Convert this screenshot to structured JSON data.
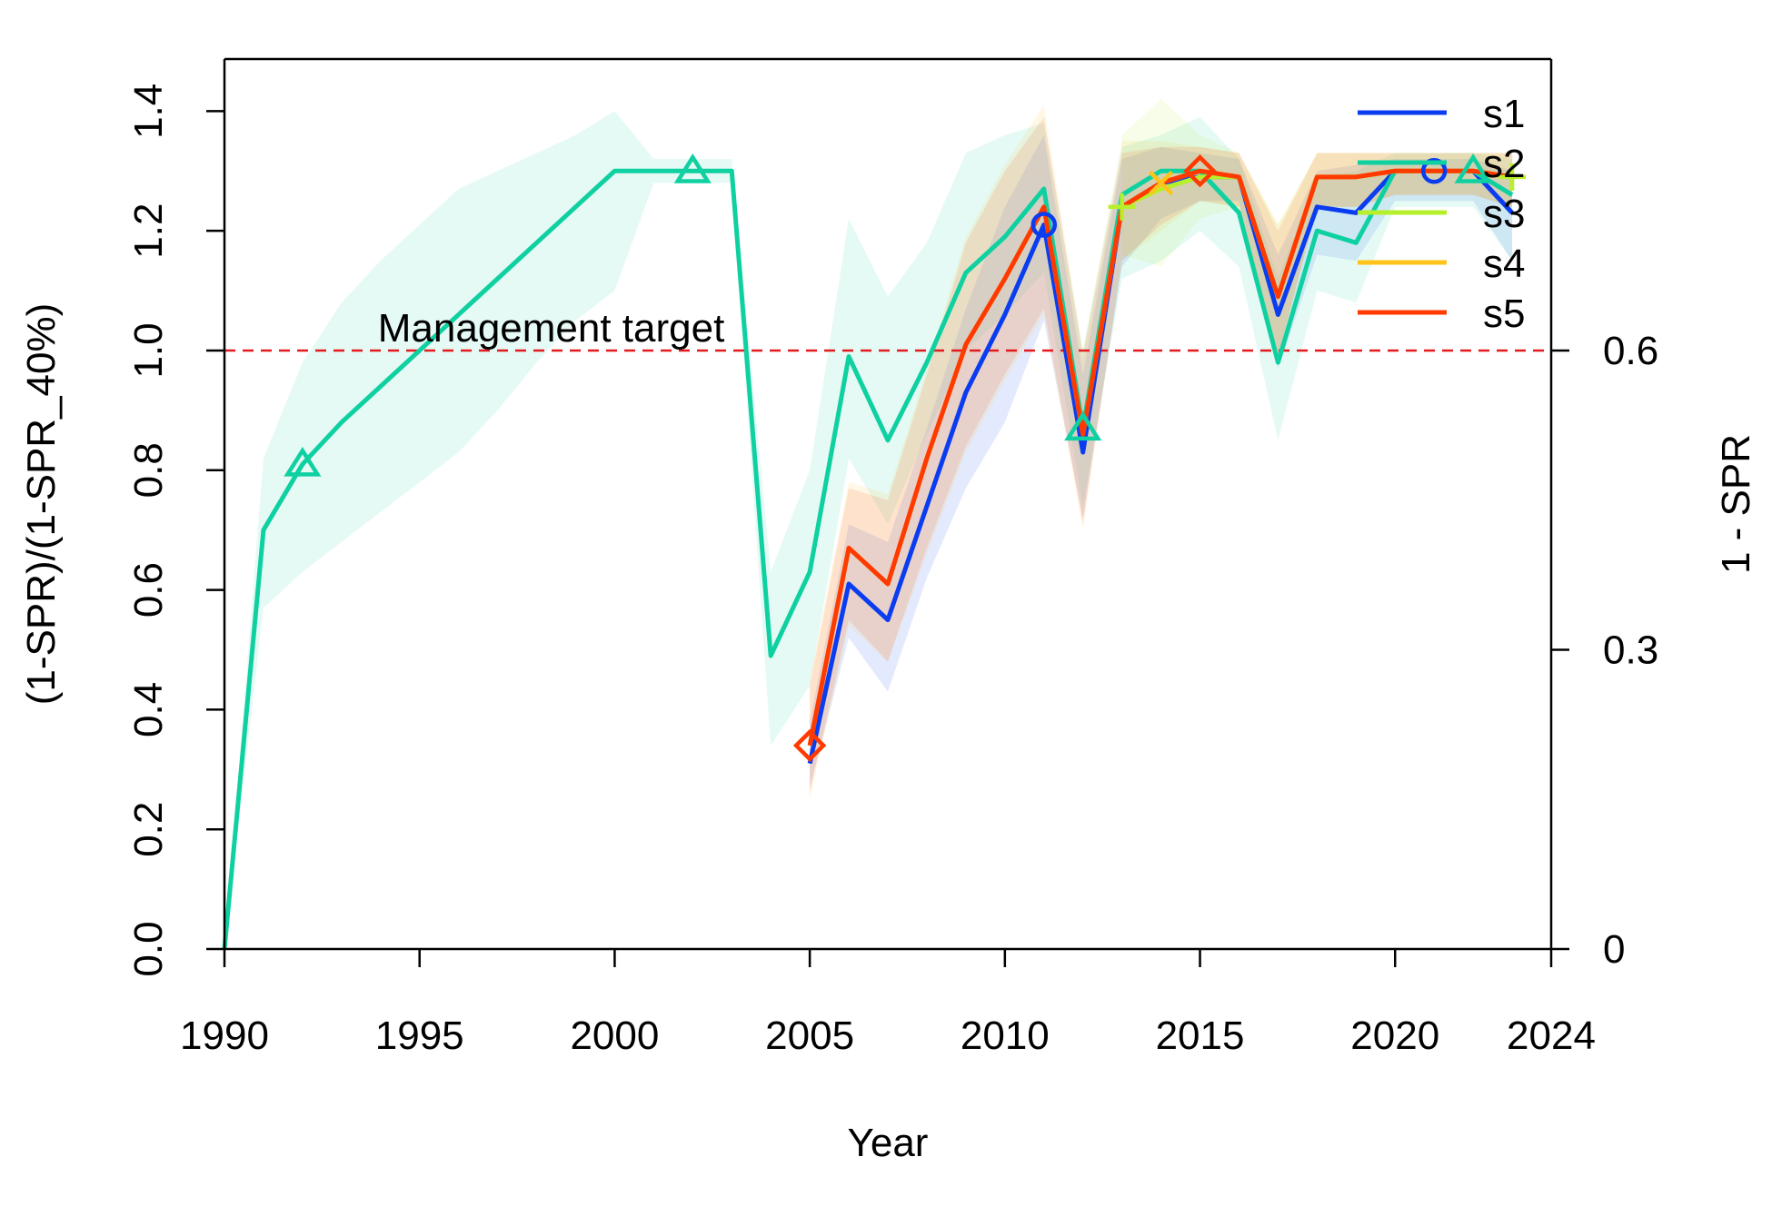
{
  "chart_data": {
    "type": "line",
    "xlabel": "Year",
    "ylabel": "(1-SPR)/(1-SPR_40%)",
    "ylabel_right": "1 - SPR",
    "xlim": [
      1990,
      2024
    ],
    "ylim": [
      0,
      1.4
    ],
    "x_ticks": [
      1990,
      1995,
      2000,
      2005,
      2010,
      2015,
      2020,
      2024
    ],
    "y_ticks": [
      0.0,
      0.2,
      0.4,
      0.6,
      0.8,
      1.0,
      1.2,
      1.4
    ],
    "y_tick_labels": [
      "0.0",
      "0.2",
      "0.4",
      "0.6",
      "0.8",
      "1.0",
      "1.2",
      "1.4"
    ],
    "y2_ticks": [
      {
        "value": 0.0,
        "label": "0"
      },
      {
        "value": 0.5,
        "label": "0.3"
      },
      {
        "value": 1.0,
        "label": "0.6"
      }
    ],
    "reference_line": {
      "y": 1.0,
      "label": "Management target",
      "label_x": 1994,
      "color": "#e31a1c"
    },
    "legend": {
      "position": "top-right"
    },
    "series": [
      {
        "name": "s1",
        "color": "#0a3cf0",
        "marker": "circle",
        "x": [
          2005,
          2006,
          2007,
          2008,
          2009,
          2010,
          2011,
          2012,
          2013,
          2014,
          2015,
          2016,
          2017,
          2018,
          2019,
          2020,
          2021,
          2022,
          2023
        ],
        "values": [
          0.31,
          0.61,
          0.55,
          0.74,
          0.93,
          1.06,
          1.21,
          0.83,
          1.24,
          1.28,
          1.29,
          1.29,
          1.06,
          1.24,
          1.23,
          1.3,
          1.3,
          1.3,
          1.23
        ],
        "lower": [
          0.27,
          0.52,
          0.43,
          0.62,
          0.77,
          0.88,
          1.05,
          0.72,
          1.14,
          1.22,
          1.25,
          1.25,
          0.97,
          1.16,
          1.15,
          1.25,
          1.25,
          1.25,
          1.15
        ],
        "upper": [
          0.38,
          0.71,
          0.68,
          0.87,
          1.07,
          1.24,
          1.36,
          0.96,
          1.32,
          1.34,
          1.33,
          1.32,
          1.16,
          1.3,
          1.31,
          1.32,
          1.32,
          1.32,
          1.3
        ],
        "marker_x": [
          2011,
          2021
        ]
      },
      {
        "name": "s2",
        "color": "#0fd0a0",
        "marker": "triangle",
        "x": [
          1990,
          1991,
          1992,
          1993,
          1994,
          1995,
          1996,
          1997,
          1998,
          1999,
          2000,
          2001,
          2002,
          2003,
          2004,
          2005,
          2006,
          2007,
          2008,
          2009,
          2010,
          2011,
          2012,
          2013,
          2014,
          2015,
          2016,
          2017,
          2018,
          2019,
          2020,
          2021,
          2022,
          2023
        ],
        "values": [
          0.0,
          0.7,
          0.81,
          0.88,
          0.94,
          1.0,
          1.06,
          1.12,
          1.18,
          1.24,
          1.3,
          1.3,
          1.3,
          1.3,
          0.49,
          0.63,
          0.99,
          0.85,
          0.98,
          1.13,
          1.19,
          1.27,
          0.87,
          1.26,
          1.3,
          1.3,
          1.23,
          0.98,
          1.2,
          1.18,
          1.3,
          1.3,
          1.3,
          1.26
        ],
        "lower": [
          0.0,
          0.57,
          0.63,
          0.68,
          0.73,
          0.78,
          0.83,
          0.9,
          0.98,
          1.05,
          1.1,
          1.28,
          1.28,
          1.28,
          0.34,
          0.44,
          0.82,
          0.71,
          0.86,
          1.0,
          1.06,
          1.13,
          0.74,
          1.12,
          1.15,
          1.2,
          1.14,
          0.85,
          1.1,
          1.08,
          1.24,
          1.24,
          1.24,
          1.15
        ],
        "upper": [
          0.0,
          0.82,
          0.98,
          1.08,
          1.15,
          1.21,
          1.27,
          1.3,
          1.33,
          1.36,
          1.4,
          1.32,
          1.32,
          1.32,
          0.63,
          0.8,
          1.22,
          1.09,
          1.18,
          1.33,
          1.36,
          1.38,
          1.0,
          1.34,
          1.36,
          1.39,
          1.32,
          1.12,
          1.29,
          1.3,
          1.33,
          1.33,
          1.33,
          1.32
        ],
        "marker_x": [
          1992,
          2002,
          2012,
          2022
        ]
      },
      {
        "name": "s3",
        "color": "#b5f02a",
        "marker": "plus",
        "x": [
          2013,
          2014,
          2015,
          2016,
          2017,
          2018,
          2019,
          2020,
          2021,
          2022,
          2023
        ],
        "values": [
          1.24,
          1.27,
          1.29,
          1.29,
          1.09,
          1.29,
          1.29,
          1.3,
          1.3,
          1.3,
          1.29
        ],
        "lower": [
          1.16,
          1.14,
          1.22,
          1.24,
          0.99,
          1.24,
          1.24,
          1.26,
          1.26,
          1.26,
          1.24
        ],
        "upper": [
          1.36,
          1.42,
          1.36,
          1.33,
          1.21,
          1.33,
          1.33,
          1.33,
          1.33,
          1.33,
          1.33
        ],
        "marker_x": [
          2013,
          2023
        ]
      },
      {
        "name": "s4",
        "color": "#ffc31a",
        "marker": "x",
        "x": [
          2005,
          2006,
          2007,
          2008,
          2009,
          2010,
          2011,
          2012,
          2013,
          2014,
          2015,
          2016,
          2017,
          2018,
          2019,
          2020,
          2021,
          2022,
          2023
        ],
        "values": [
          0.34,
          0.67,
          0.61,
          0.82,
          1.01,
          1.12,
          1.24,
          0.86,
          1.24,
          1.28,
          1.3,
          1.29,
          1.09,
          1.29,
          1.29,
          1.3,
          1.3,
          1.3,
          1.29
        ],
        "lower": [
          0.25,
          0.54,
          0.48,
          0.66,
          0.83,
          0.95,
          1.06,
          0.7,
          1.15,
          1.2,
          1.25,
          1.24,
          0.99,
          1.24,
          1.24,
          1.26,
          1.26,
          1.26,
          1.24
        ],
        "upper": [
          0.45,
          0.78,
          0.76,
          0.97,
          1.19,
          1.31,
          1.41,
          1.0,
          1.35,
          1.35,
          1.34,
          1.33,
          1.21,
          1.33,
          1.33,
          1.33,
          1.33,
          1.33,
          1.33
        ],
        "marker_x": [
          2014
        ]
      },
      {
        "name": "s5",
        "color": "#ff3a00",
        "marker": "diamond",
        "x": [
          2005,
          2006,
          2007,
          2008,
          2009,
          2010,
          2011,
          2012,
          2013,
          2014,
          2015,
          2016,
          2017,
          2018,
          2019,
          2020,
          2021,
          2022,
          2023
        ],
        "values": [
          0.34,
          0.67,
          0.61,
          0.82,
          1.01,
          1.12,
          1.24,
          0.86,
          1.24,
          1.28,
          1.3,
          1.29,
          1.09,
          1.29,
          1.29,
          1.3,
          1.3,
          1.3,
          1.29
        ],
        "lower": [
          0.26,
          0.55,
          0.48,
          0.67,
          0.84,
          0.96,
          1.07,
          0.71,
          1.15,
          1.21,
          1.25,
          1.24,
          0.99,
          1.24,
          1.24,
          1.26,
          1.26,
          1.26,
          1.24
        ],
        "upper": [
          0.44,
          0.77,
          0.75,
          0.96,
          1.18,
          1.3,
          1.39,
          0.99,
          1.33,
          1.34,
          1.34,
          1.33,
          1.2,
          1.33,
          1.33,
          1.33,
          1.33,
          1.33,
          1.33
        ],
        "marker_x": [
          2005,
          2015
        ]
      }
    ],
    "grid": false
  }
}
